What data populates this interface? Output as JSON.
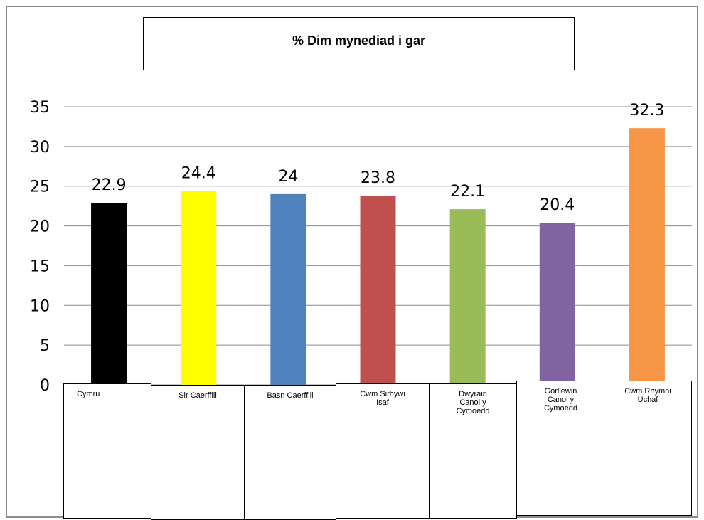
{
  "chart_data": {
    "type": "bar",
    "title": "% Dim mynediad i gar",
    "categories": [
      "Cymru",
      "Sir Caerffili",
      "Basn Caerffili",
      "Cwm Sirhywi Isaf",
      "Dwyrain Canol y Cymoedd",
      "Gorllewin Canol y Cymoedd",
      "Cwm Rhymni Uchaf"
    ],
    "values": [
      22.9,
      24.4,
      24,
      23.8,
      22.1,
      20.4,
      32.3
    ],
    "data_labels": [
      "22.9",
      "24.4",
      "24",
      "23.8",
      "22.1",
      "20.4",
      "32.3"
    ],
    "colors": [
      "#000000",
      "#ffff00",
      "#4f81bd",
      "#c0504d",
      "#9bbb59",
      "#8064a2",
      "#f79646"
    ],
    "ylim": [
      0,
      35
    ],
    "yticks": [
      "0",
      "5",
      "10",
      "15",
      "20",
      "25",
      "30",
      "35"
    ],
    "grid": true,
    "xlabel": "",
    "ylabel": ""
  }
}
